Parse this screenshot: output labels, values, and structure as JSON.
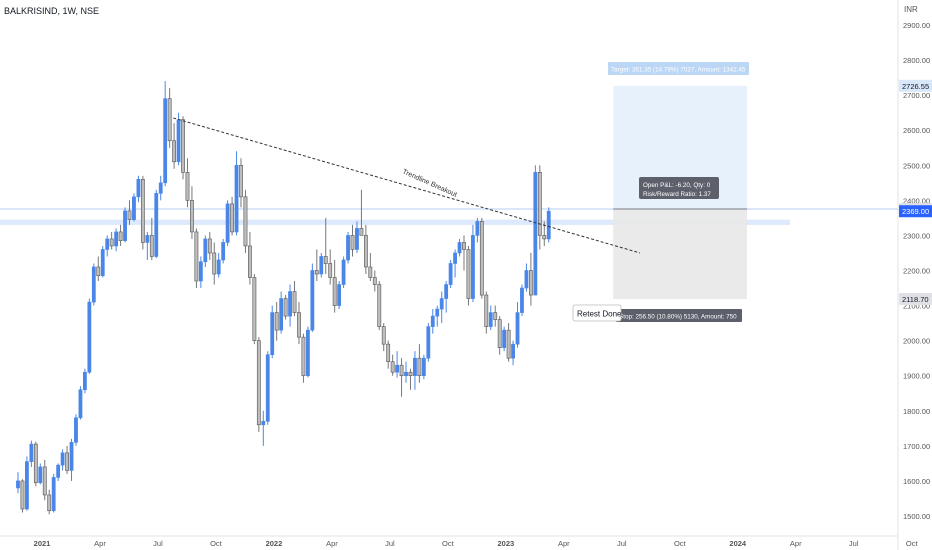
{
  "header": {
    "symbol": "BALKRISIND, 1W, NSE",
    "currency": "INR"
  },
  "colors": {
    "up": "#4a86e8",
    "down": "#bdbdbd",
    "outline": "#555555",
    "accent": "#2962ff",
    "target_zone": "#e3eefc",
    "stop_zone": "#e8e8e8",
    "label_blue": "#bcd6f5",
    "label_dark": "#5d606b"
  },
  "chart_data": {
    "type": "candlestick",
    "title": "BALKRISIND, 1W, NSE",
    "ylabel": "INR",
    "ylim": [
      1480,
      2940
    ],
    "y_ticks": [
      1500,
      1600,
      1700,
      1800,
      1900,
      2000,
      2100,
      2200,
      2300,
      2400,
      2500,
      2600,
      2700,
      2800,
      2900
    ],
    "x_tick_labels": [
      "2021",
      "Apr",
      "Jul",
      "Oct",
      "2022",
      "Apr",
      "Jul",
      "Oct",
      "2023",
      "Apr",
      "Jul",
      "Oct",
      "2024",
      "Apr",
      "Jul",
      "Oct"
    ],
    "x_ticks_week": [
      0,
      13,
      26,
      39,
      52,
      65,
      78,
      91,
      104,
      117,
      130,
      143,
      156,
      169,
      182,
      195
    ],
    "candles": [
      [
        1580,
        1625,
        1565,
        1600
      ],
      [
        1600,
        1605,
        1510,
        1520
      ],
      [
        1520,
        1670,
        1515,
        1655
      ],
      [
        1655,
        1715,
        1640,
        1705
      ],
      [
        1705,
        1712,
        1585,
        1595
      ],
      [
        1595,
        1650,
        1590,
        1640
      ],
      [
        1640,
        1660,
        1545,
        1560
      ],
      [
        1560,
        1575,
        1505,
        1515
      ],
      [
        1515,
        1620,
        1510,
        1610
      ],
      [
        1610,
        1650,
        1600,
        1645
      ],
      [
        1645,
        1690,
        1630,
        1680
      ],
      [
        1680,
        1700,
        1620,
        1630
      ],
      [
        1630,
        1720,
        1600,
        1710
      ],
      [
        1710,
        1790,
        1700,
        1780
      ],
      [
        1780,
        1870,
        1775,
        1860
      ],
      [
        1860,
        1920,
        1850,
        1910
      ],
      [
        1910,
        2120,
        1905,
        2110
      ],
      [
        2110,
        2220,
        2100,
        2210
      ],
      [
        2210,
        2240,
        2170,
        2185
      ],
      [
        2185,
        2270,
        2180,
        2260
      ],
      [
        2260,
        2300,
        2240,
        2290
      ],
      [
        2290,
        2310,
        2260,
        2270
      ],
      [
        2270,
        2320,
        2255,
        2310
      ],
      [
        2310,
        2330,
        2270,
        2285
      ],
      [
        2285,
        2380,
        2280,
        2370
      ],
      [
        2370,
        2400,
        2330,
        2345
      ],
      [
        2345,
        2420,
        2340,
        2410
      ],
      [
        2410,
        2470,
        2395,
        2460
      ],
      [
        2460,
        2470,
        2260,
        2280
      ],
      [
        2280,
        2310,
        2230,
        2300
      ],
      [
        2300,
        2350,
        2230,
        2240
      ],
      [
        2240,
        2430,
        2235,
        2420
      ],
      [
        2420,
        2470,
        2400,
        2450
      ],
      [
        2450,
        2740,
        2440,
        2690
      ],
      [
        2690,
        2720,
        2550,
        2570
      ],
      [
        2570,
        2620,
        2490,
        2510
      ],
      [
        2510,
        2650,
        2500,
        2630
      ],
      [
        2630,
        2640,
        2460,
        2480
      ],
      [
        2480,
        2520,
        2380,
        2400
      ],
      [
        2400,
        2440,
        2290,
        2310
      ],
      [
        2310,
        2320,
        2150,
        2170
      ],
      [
        2170,
        2240,
        2150,
        2225
      ],
      [
        2225,
        2300,
        2210,
        2290
      ],
      [
        2290,
        2310,
        2230,
        2250
      ],
      [
        2250,
        2280,
        2160,
        2190
      ],
      [
        2190,
        2250,
        2180,
        2230
      ],
      [
        2230,
        2290,
        2220,
        2280
      ],
      [
        2280,
        2400,
        2270,
        2390
      ],
      [
        2390,
        2410,
        2300,
        2310
      ],
      [
        2310,
        2540,
        2300,
        2500
      ],
      [
        2500,
        2520,
        2380,
        2410
      ],
      [
        2410,
        2430,
        2250,
        2270
      ],
      [
        2270,
        2310,
        2160,
        2180
      ],
      [
        2180,
        2190,
        1990,
        2000
      ],
      [
        2000,
        2010,
        1740,
        1760
      ],
      [
        1760,
        1800,
        1700,
        1770
      ],
      [
        1770,
        1970,
        1760,
        1960
      ],
      [
        1960,
        2100,
        1950,
        2080
      ],
      [
        2080,
        2110,
        2000,
        2030
      ],
      [
        2030,
        2140,
        2020,
        2120
      ],
      [
        2120,
        2130,
        2060,
        2070
      ],
      [
        2070,
        2160,
        2040,
        2140
      ],
      [
        2140,
        2170,
        2070,
        2080
      ],
      [
        2080,
        2110,
        1990,
        2010
      ],
      [
        2010,
        2020,
        1880,
        1900
      ],
      [
        1900,
        2040,
        1895,
        2030
      ],
      [
        2030,
        2220,
        2025,
        2200
      ],
      [
        2200,
        2260,
        2170,
        2190
      ],
      [
        2190,
        2250,
        2180,
        2240
      ],
      [
        2240,
        2350,
        2190,
        2220
      ],
      [
        2220,
        2260,
        2160,
        2180
      ],
      [
        2180,
        2230,
        2080,
        2100
      ],
      [
        2100,
        2170,
        2090,
        2160
      ],
      [
        2160,
        2240,
        2150,
        2230
      ],
      [
        2230,
        2310,
        2220,
        2300
      ],
      [
        2300,
        2330,
        2240,
        2260
      ],
      [
        2260,
        2340,
        2250,
        2320
      ],
      [
        2320,
        2430,
        2300,
        2300
      ],
      [
        2300,
        2330,
        2190,
        2210
      ],
      [
        2210,
        2250,
        2170,
        2180
      ],
      [
        2180,
        2200,
        2140,
        2160
      ],
      [
        2160,
        2170,
        2030,
        2040
      ],
      [
        2040,
        2050,
        1970,
        1990
      ],
      [
        1990,
        2000,
        1920,
        1940
      ],
      [
        1940,
        1960,
        1900,
        1910
      ],
      [
        1910,
        1970,
        1895,
        1930
      ],
      [
        1930,
        1950,
        1840,
        1900
      ],
      [
        1900,
        1940,
        1880,
        1910
      ],
      [
        1910,
        1920,
        1860,
        1900
      ],
      [
        1900,
        1970,
        1860,
        1950
      ],
      [
        1950,
        1990,
        1880,
        1900
      ],
      [
        1900,
        1960,
        1890,
        1950
      ],
      [
        1950,
        2050,
        1940,
        2040
      ],
      [
        2040,
        2090,
        2020,
        2070
      ],
      [
        2070,
        2100,
        2040,
        2090
      ],
      [
        2090,
        2140,
        2050,
        2120
      ],
      [
        2120,
        2170,
        2080,
        2160
      ],
      [
        2160,
        2230,
        2150,
        2220
      ],
      [
        2220,
        2260,
        2180,
        2250
      ],
      [
        2250,
        2290,
        2240,
        2280
      ],
      [
        2280,
        2300,
        2200,
        2260
      ],
      [
        2260,
        2270,
        2100,
        2120
      ],
      [
        2120,
        2330,
        2110,
        2300
      ],
      [
        2300,
        2350,
        2280,
        2340
      ],
      [
        2340,
        2350,
        2120,
        2130
      ],
      [
        2130,
        2140,
        2020,
        2040
      ],
      [
        2040,
        2100,
        2030,
        2080
      ],
      [
        2080,
        2100,
        2040,
        2060
      ],
      [
        2060,
        2070,
        1960,
        1980
      ],
      [
        1980,
        2040,
        1970,
        2030
      ],
      [
        2030,
        2050,
        1940,
        1950
      ],
      [
        1950,
        2000,
        1930,
        1990
      ],
      [
        1990,
        2110,
        1980,
        2080
      ],
      [
        2080,
        2160,
        2070,
        2150
      ],
      [
        2150,
        2220,
        2140,
        2200
      ],
      [
        2200,
        2250,
        2100,
        2130
      ],
      [
        2130,
        2500,
        2130,
        2480
      ],
      [
        2480,
        2500,
        2260,
        2300
      ],
      [
        2300,
        2340,
        2270,
        2290
      ],
      [
        2290,
        2380,
        2280,
        2369
      ]
    ]
  },
  "annotations": {
    "trendline_label": "Trendline Breakout",
    "retest_label": "Retest Done",
    "target_text": "Target: 351.35 (14.79%) 7027, Amount: 1342.45",
    "open_pl_text": "Open P&L: -6.20, Qty: 0",
    "rr_text": "Risk/Reward Ratio: 1.37",
    "stop_text": "Stop: 256.50 (10.80%) 5130, Amount: 750"
  },
  "trade": {
    "entry": 2375.2,
    "target": 2726.55,
    "stop": 2118.7,
    "current": 2369.0
  },
  "axis_badges": {
    "target": "2726.55",
    "entry": "2375.20",
    "current": "2369.00",
    "stop": "2118.70"
  }
}
